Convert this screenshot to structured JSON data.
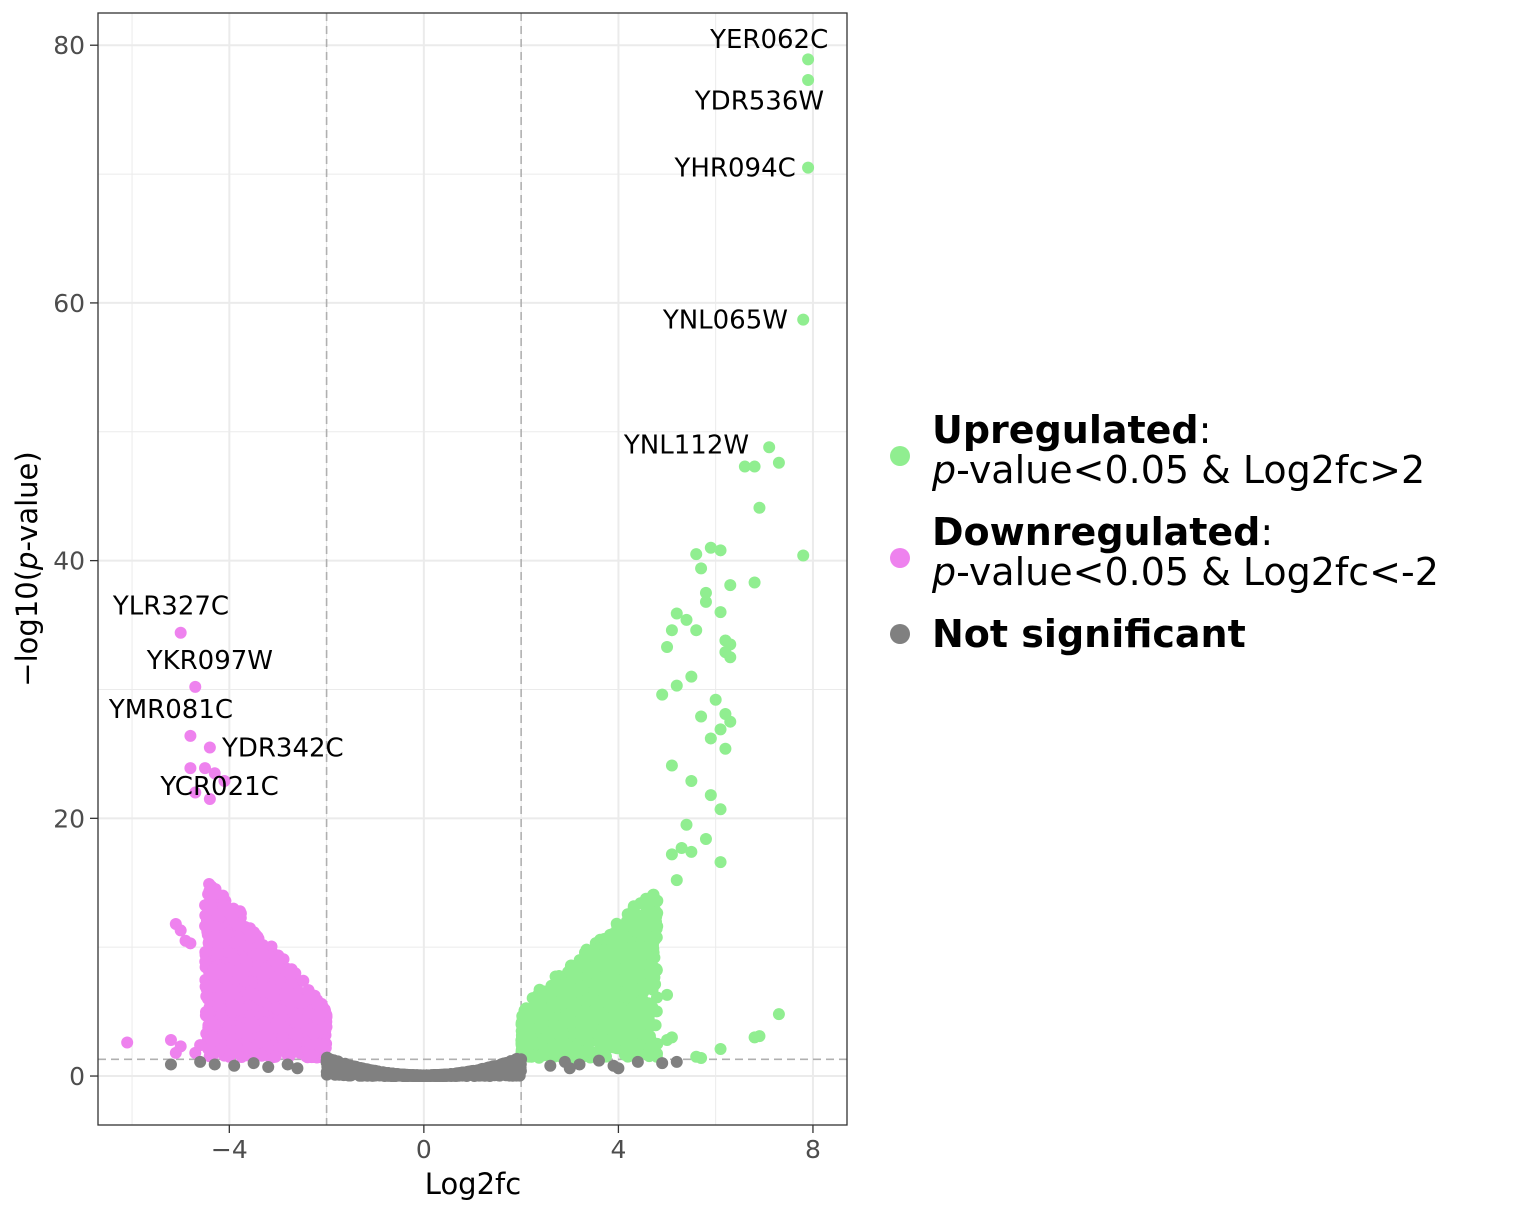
{
  "chart_data": {
    "type": "scatter",
    "title": "",
    "xlabel": "Log2fc",
    "ylabel_prefix": "−log10(",
    "ylabel_italic": "p",
    "ylabel_suffix": "-value)",
    "xlim": [
      -6.7,
      8.7
    ],
    "ylim": [
      -3.8,
      82.5
    ],
    "x_ticks": [
      -4,
      0,
      4,
      8
    ],
    "x_tick_labels": [
      "−4",
      "0",
      "4",
      "8"
    ],
    "y_ticks": [
      0,
      20,
      40,
      60,
      80
    ],
    "y_tick_labels": [
      "0",
      "20",
      "40",
      "60",
      "80"
    ],
    "grid": true,
    "vlines": [
      -2,
      2
    ],
    "hline": 1.3,
    "legend_position": "right",
    "colors": {
      "up": "#90ee90",
      "down": "#ee82ee",
      "ns": "#808080",
      "reference_line": "#b0b0b0",
      "grid": "#ebebeb"
    },
    "series": [
      {
        "key": "up",
        "name": "Upregulated",
        "condition_italic": "p",
        "condition_rest": "-value<0.05 & Log2fc>2",
        "points": [
          [
            7.9,
            78.9
          ],
          [
            7.9,
            77.3
          ],
          [
            7.9,
            70.5
          ],
          [
            7.8,
            58.7
          ],
          [
            7.1,
            48.8
          ],
          [
            6.6,
            47.3
          ],
          [
            6.8,
            47.3
          ],
          [
            7.3,
            47.6
          ],
          [
            6.9,
            44.1
          ],
          [
            7.8,
            40.4
          ],
          [
            5.9,
            41.0
          ],
          [
            6.1,
            40.8
          ],
          [
            5.6,
            40.5
          ],
          [
            5.7,
            39.4
          ],
          [
            6.3,
            38.1
          ],
          [
            6.8,
            38.3
          ],
          [
            5.8,
            37.5
          ],
          [
            5.8,
            36.8
          ],
          [
            6.1,
            36.0
          ],
          [
            5.2,
            35.9
          ],
          [
            5.4,
            35.4
          ],
          [
            5.1,
            34.6
          ],
          [
            5.6,
            34.6
          ],
          [
            6.2,
            33.8
          ],
          [
            6.3,
            33.5
          ],
          [
            5.0,
            33.3
          ],
          [
            6.2,
            32.9
          ],
          [
            6.3,
            32.5
          ],
          [
            5.5,
            31.0
          ],
          [
            5.2,
            30.3
          ],
          [
            4.9,
            29.6
          ],
          [
            6.0,
            29.2
          ],
          [
            6.2,
            28.1
          ],
          [
            6.3,
            27.5
          ],
          [
            5.7,
            27.9
          ],
          [
            6.1,
            26.9
          ],
          [
            5.9,
            26.2
          ],
          [
            6.2,
            25.4
          ],
          [
            5.1,
            24.1
          ],
          [
            5.5,
            22.9
          ],
          [
            5.9,
            21.8
          ],
          [
            6.1,
            20.7
          ],
          [
            5.4,
            19.5
          ],
          [
            5.8,
            18.4
          ],
          [
            5.3,
            17.7
          ],
          [
            5.5,
            17.4
          ],
          [
            5.1,
            17.2
          ],
          [
            6.1,
            16.6
          ],
          [
            5.2,
            15.2
          ],
          [
            4.8,
            13.6
          ],
          [
            4.6,
            10.9
          ],
          [
            5.0,
            6.3
          ],
          [
            3.9,
            5.8
          ],
          [
            3.5,
            5.1
          ],
          [
            3.0,
            4.2
          ],
          [
            7.3,
            4.8
          ],
          [
            6.9,
            3.1
          ],
          [
            6.8,
            3.0
          ],
          [
            5.1,
            3.0
          ],
          [
            5.0,
            2.8
          ],
          [
            4.8,
            2.5
          ],
          [
            6.1,
            2.1
          ],
          [
            3.3,
            1.8
          ],
          [
            3.5,
            1.8
          ],
          [
            3.7,
            1.7
          ],
          [
            5.6,
            1.5
          ],
          [
            5.7,
            1.4
          ],
          [
            2.4,
            1.6
          ],
          [
            2.6,
            1.5
          ]
        ],
        "cloud": {
          "x_min": 2,
          "x_max": 4.8,
          "y_min": 1.4,
          "y_max": 24.8,
          "a": 3.4,
          "count": 1400
        }
      },
      {
        "key": "down",
        "name": "Downregulated",
        "condition_italic": "p",
        "condition_rest": "-value<0.05 & Log2fc<-2",
        "points": [
          [
            -5.0,
            34.4
          ],
          [
            -4.7,
            30.2
          ],
          [
            -4.8,
            26.4
          ],
          [
            -4.4,
            25.5
          ],
          [
            -4.8,
            23.9
          ],
          [
            -4.5,
            23.9
          ],
          [
            -4.3,
            23.5
          ],
          [
            -4.1,
            22.9
          ],
          [
            -4.7,
            22.0
          ],
          [
            -4.4,
            21.5
          ],
          [
            -5.1,
            11.8
          ],
          [
            -5.0,
            11.3
          ],
          [
            -4.9,
            10.5
          ],
          [
            -4.8,
            10.3
          ],
          [
            -6.1,
            2.6
          ],
          [
            -5.2,
            2.8
          ],
          [
            -5.0,
            2.3
          ],
          [
            -4.6,
            2.4
          ],
          [
            -4.4,
            2.1
          ],
          [
            -4.3,
            2.8
          ],
          [
            -4.1,
            1.9
          ],
          [
            -5.1,
            1.8
          ],
          [
            -4.7,
            1.8
          ],
          [
            -4.0,
            1.5
          ]
        ],
        "cloud": {
          "x_min": -4.5,
          "x_max": -2,
          "y_min": 1.4,
          "y_max": 22,
          "a": 4.2,
          "count": 1300
        }
      },
      {
        "key": "ns",
        "name": "Not significant",
        "points": [
          [
            -5.2,
            0.9
          ],
          [
            -4.6,
            1.1
          ],
          [
            -4.3,
            0.9
          ],
          [
            -3.9,
            0.8
          ],
          [
            -3.5,
            1.0
          ],
          [
            -3.2,
            0.7
          ],
          [
            -2.8,
            0.9
          ],
          [
            -2.6,
            0.6
          ],
          [
            2.6,
            0.8
          ],
          [
            2.9,
            1.1
          ],
          [
            3.2,
            0.9
          ],
          [
            3.6,
            1.2
          ],
          [
            3.9,
            0.8
          ],
          [
            4.4,
            1.1
          ],
          [
            4.9,
            1.0
          ],
          [
            5.2,
            1.1
          ],
          [
            4.0,
            0.6
          ],
          [
            3.0,
            0.6
          ]
        ],
        "cloud": {
          "x_min": -2,
          "x_max": 2,
          "y_min": 0,
          "y_max": 5.6,
          "a": 0,
          "count": 1300
        }
      }
    ],
    "labels": [
      {
        "text": "YER062C",
        "x": 7.9,
        "y": 78.9,
        "lx": 7.1,
        "ly": 80.5,
        "anchor": "middle"
      },
      {
        "text": "YDR536W",
        "x": 7.9,
        "y": 77.3,
        "lx": 6.9,
        "ly": 75.7,
        "anchor": "middle"
      },
      {
        "text": "YHR094C",
        "x": 7.9,
        "y": 70.5,
        "lx": 6.4,
        "ly": 70.5,
        "anchor": "middle"
      },
      {
        "text": "YNL065W",
        "x": 7.8,
        "y": 58.7,
        "lx": 6.2,
        "ly": 58.7,
        "anchor": "middle"
      },
      {
        "text": "YNL112W",
        "x": 7.1,
        "y": 48.8,
        "lx": 5.4,
        "ly": 49.0,
        "anchor": "middle"
      },
      {
        "text": "YLR327C",
        "x": -5.0,
        "y": 34.4,
        "lx": -5.2,
        "ly": 36.5,
        "anchor": "middle"
      },
      {
        "text": "YKR097W",
        "x": -4.7,
        "y": 30.2,
        "lx": -4.4,
        "ly": 32.3,
        "anchor": "middle"
      },
      {
        "text": "YMR081C",
        "x": -4.8,
        "y": 26.4,
        "lx": -5.2,
        "ly": 28.5,
        "anchor": "middle"
      },
      {
        "text": "YDR342C",
        "x": -4.4,
        "y": 25.5,
        "lx": -2.9,
        "ly": 25.5,
        "anchor": "middle"
      },
      {
        "text": "YCR021C",
        "x": -4.1,
        "y": 22.9,
        "lx": -4.2,
        "ly": 22.5,
        "anchor": "middle"
      }
    ]
  }
}
